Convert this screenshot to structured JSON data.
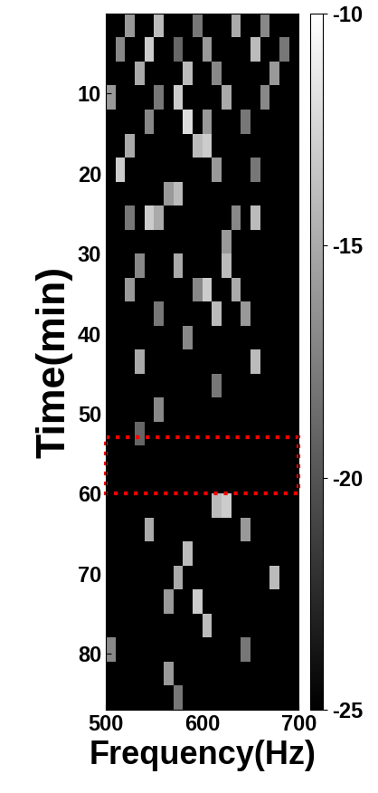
{
  "chart_data": {
    "type": "heatmap",
    "x_label": "Frequency(Hz)",
    "y_label": "Time(min)",
    "xlim": [
      500,
      700
    ],
    "xticks": [
      500,
      600,
      700
    ],
    "ylim": [
      87,
      0
    ],
    "yticks": [
      10,
      20,
      30,
      40,
      50,
      60,
      70,
      80
    ],
    "freq_edges": [
      500,
      510,
      520,
      530,
      540,
      550,
      560,
      570,
      580,
      590,
      600,
      610,
      620,
      630,
      640,
      650,
      660,
      670,
      680,
      690,
      700
    ],
    "time_edges": [
      0,
      3,
      6,
      9,
      12,
      15,
      18,
      21,
      24,
      27,
      30,
      33,
      36,
      39,
      42,
      45,
      48,
      51,
      54,
      57,
      60,
      63,
      66,
      69,
      72,
      75,
      78,
      81,
      84,
      87
    ],
    "cells": [
      [
        -25,
        -25,
        -16,
        -25,
        -25,
        -14,
        -25,
        -25,
        -25,
        -18,
        -25,
        -25,
        -25,
        -15,
        -25,
        -25,
        -17,
        -25,
        -25,
        -25
      ],
      [
        -25,
        -17,
        -25,
        -25,
        -13,
        -25,
        -25,
        -19,
        -25,
        -25,
        -16,
        -25,
        -25,
        -25,
        -25,
        -14,
        -25,
        -25,
        -18,
        -25
      ],
      [
        -25,
        -25,
        -25,
        -15,
        -25,
        -25,
        -25,
        -25,
        -14,
        -25,
        -25,
        -17,
        -25,
        -25,
        -25,
        -25,
        -25,
        -16,
        -25,
        -25
      ],
      [
        -16,
        -25,
        -25,
        -25,
        -25,
        -18,
        -25,
        -13,
        -25,
        -25,
        -25,
        -25,
        -15,
        -25,
        -25,
        -25,
        -17,
        -25,
        -25,
        -25
      ],
      [
        -25,
        -25,
        -25,
        -25,
        -17,
        -25,
        -25,
        -25,
        -12,
        -25,
        -16,
        -25,
        -25,
        -25,
        -18,
        -25,
        -25,
        -25,
        -25,
        -25
      ],
      [
        -25,
        -25,
        -15,
        -25,
        -25,
        -25,
        -25,
        -25,
        -25,
        -14,
        -13,
        -25,
        -25,
        -25,
        -25,
        -25,
        -25,
        -25,
        -25,
        -25
      ],
      [
        -25,
        -13,
        -25,
        -25,
        -25,
        -25,
        -25,
        -25,
        -25,
        -25,
        -25,
        -16,
        -25,
        -25,
        -25,
        -18,
        -25,
        -25,
        -25,
        -25
      ],
      [
        -25,
        -25,
        -25,
        -25,
        -25,
        -25,
        -16,
        -14,
        -25,
        -25,
        -25,
        -25,
        -25,
        -25,
        -25,
        -25,
        -25,
        -25,
        -25,
        -25
      ],
      [
        -25,
        -25,
        -18,
        -25,
        -13,
        -15,
        -25,
        -25,
        -25,
        -25,
        -25,
        -25,
        -25,
        -17,
        -25,
        -14,
        -25,
        -25,
        -25,
        -25
      ],
      [
        -25,
        -25,
        -25,
        -25,
        -25,
        -25,
        -25,
        -25,
        -25,
        -25,
        -25,
        -25,
        -16,
        -25,
        -25,
        -25,
        -25,
        -25,
        -25,
        -25
      ],
      [
        -25,
        -25,
        -25,
        -17,
        -25,
        -25,
        -25,
        -15,
        -25,
        -25,
        -25,
        -25,
        -14,
        -25,
        -25,
        -25,
        -25,
        -25,
        -25,
        -25
      ],
      [
        -25,
        -25,
        -16,
        -25,
        -25,
        -25,
        -25,
        -25,
        -25,
        -17,
        -13,
        -25,
        -25,
        -15,
        -25,
        -25,
        -25,
        -25,
        -25,
        -25
      ],
      [
        -25,
        -25,
        -25,
        -25,
        -25,
        -18,
        -25,
        -25,
        -25,
        -25,
        -25,
        -14,
        -25,
        -25,
        -16,
        -25,
        -25,
        -25,
        -25,
        -25
      ],
      [
        -25,
        -25,
        -25,
        -25,
        -25,
        -25,
        -25,
        -25,
        -17,
        -25,
        -25,
        -25,
        -25,
        -25,
        -25,
        -25,
        -25,
        -25,
        -25,
        -25
      ],
      [
        -25,
        -25,
        -25,
        -15,
        -25,
        -25,
        -25,
        -25,
        -25,
        -25,
        -25,
        -25,
        -25,
        -25,
        -25,
        -14,
        -25,
        -25,
        -25,
        -25
      ],
      [
        -25,
        -25,
        -25,
        -25,
        -25,
        -25,
        -25,
        -25,
        -25,
        -25,
        -25,
        -18,
        -25,
        -25,
        -25,
        -25,
        -25,
        -25,
        -25,
        -25
      ],
      [
        -25,
        -25,
        -25,
        -25,
        -25,
        -17,
        -25,
        -25,
        -25,
        -25,
        -25,
        -25,
        -25,
        -25,
        -25,
        -25,
        -25,
        -25,
        -25,
        -25
      ],
      [
        -25,
        -25,
        -25,
        -19,
        -25,
        -25,
        -25,
        -25,
        -25,
        -25,
        -25,
        -25,
        -25,
        -25,
        -25,
        -25,
        -25,
        -25,
        -25,
        -25
      ],
      [
        -25,
        -25,
        -25,
        -25,
        -25,
        -25,
        -25,
        -25,
        -25,
        -25,
        -25,
        -25,
        -25,
        -25,
        -25,
        -25,
        -25,
        -25,
        -25,
        -25
      ],
      [
        -25,
        -25,
        -25,
        -25,
        -25,
        -25,
        -25,
        -25,
        -25,
        -25,
        -25,
        -25,
        -25,
        -25,
        -25,
        -25,
        -25,
        -25,
        -25,
        -25
      ],
      [
        -25,
        -25,
        -25,
        -25,
        -25,
        -25,
        -25,
        -25,
        -25,
        -25,
        -25,
        -14,
        -13,
        -25,
        -25,
        -25,
        -25,
        -25,
        -25,
        -25
      ],
      [
        -25,
        -25,
        -25,
        -25,
        -15,
        -25,
        -25,
        -25,
        -25,
        -25,
        -25,
        -25,
        -25,
        -25,
        -16,
        -25,
        -25,
        -25,
        -25,
        -25
      ],
      [
        -25,
        -25,
        -25,
        -25,
        -25,
        -25,
        -25,
        -25,
        -14,
        -25,
        -25,
        -25,
        -25,
        -25,
        -25,
        -25,
        -25,
        -25,
        -25,
        -25
      ],
      [
        -25,
        -25,
        -25,
        -25,
        -25,
        -25,
        -25,
        -15,
        -25,
        -25,
        -25,
        -25,
        -25,
        -25,
        -25,
        -25,
        -25,
        -14,
        -25,
        -25
      ],
      [
        -25,
        -25,
        -25,
        -25,
        -25,
        -25,
        -16,
        -25,
        -25,
        -13,
        -25,
        -25,
        -25,
        -25,
        -25,
        -25,
        -25,
        -25,
        -25,
        -25
      ],
      [
        -25,
        -25,
        -25,
        -25,
        -25,
        -25,
        -25,
        -25,
        -25,
        -25,
        -14,
        -25,
        -25,
        -25,
        -25,
        -25,
        -25,
        -25,
        -25,
        -25
      ],
      [
        -17,
        -25,
        -25,
        -25,
        -25,
        -25,
        -25,
        -25,
        -25,
        -25,
        -25,
        -25,
        -25,
        -25,
        -18,
        -25,
        -25,
        -25,
        -25,
        -25
      ],
      [
        -25,
        -25,
        -25,
        -25,
        -25,
        -25,
        -16,
        -25,
        -25,
        -25,
        -25,
        -25,
        -25,
        -25,
        -25,
        -25,
        -25,
        -25,
        -25,
        -25
      ],
      [
        -25,
        -25,
        -25,
        -25,
        -25,
        -25,
        -25,
        -18,
        -25,
        -25,
        -25,
        -25,
        -25,
        -25,
        -25,
        -25,
        -25,
        -25,
        -25,
        -25
      ]
    ],
    "color_range": [
      -25,
      -10
    ],
    "color_ticks": [
      -25,
      -20,
      -15,
      -10
    ],
    "highlight_time": [
      53,
      60
    ],
    "color": "red"
  }
}
